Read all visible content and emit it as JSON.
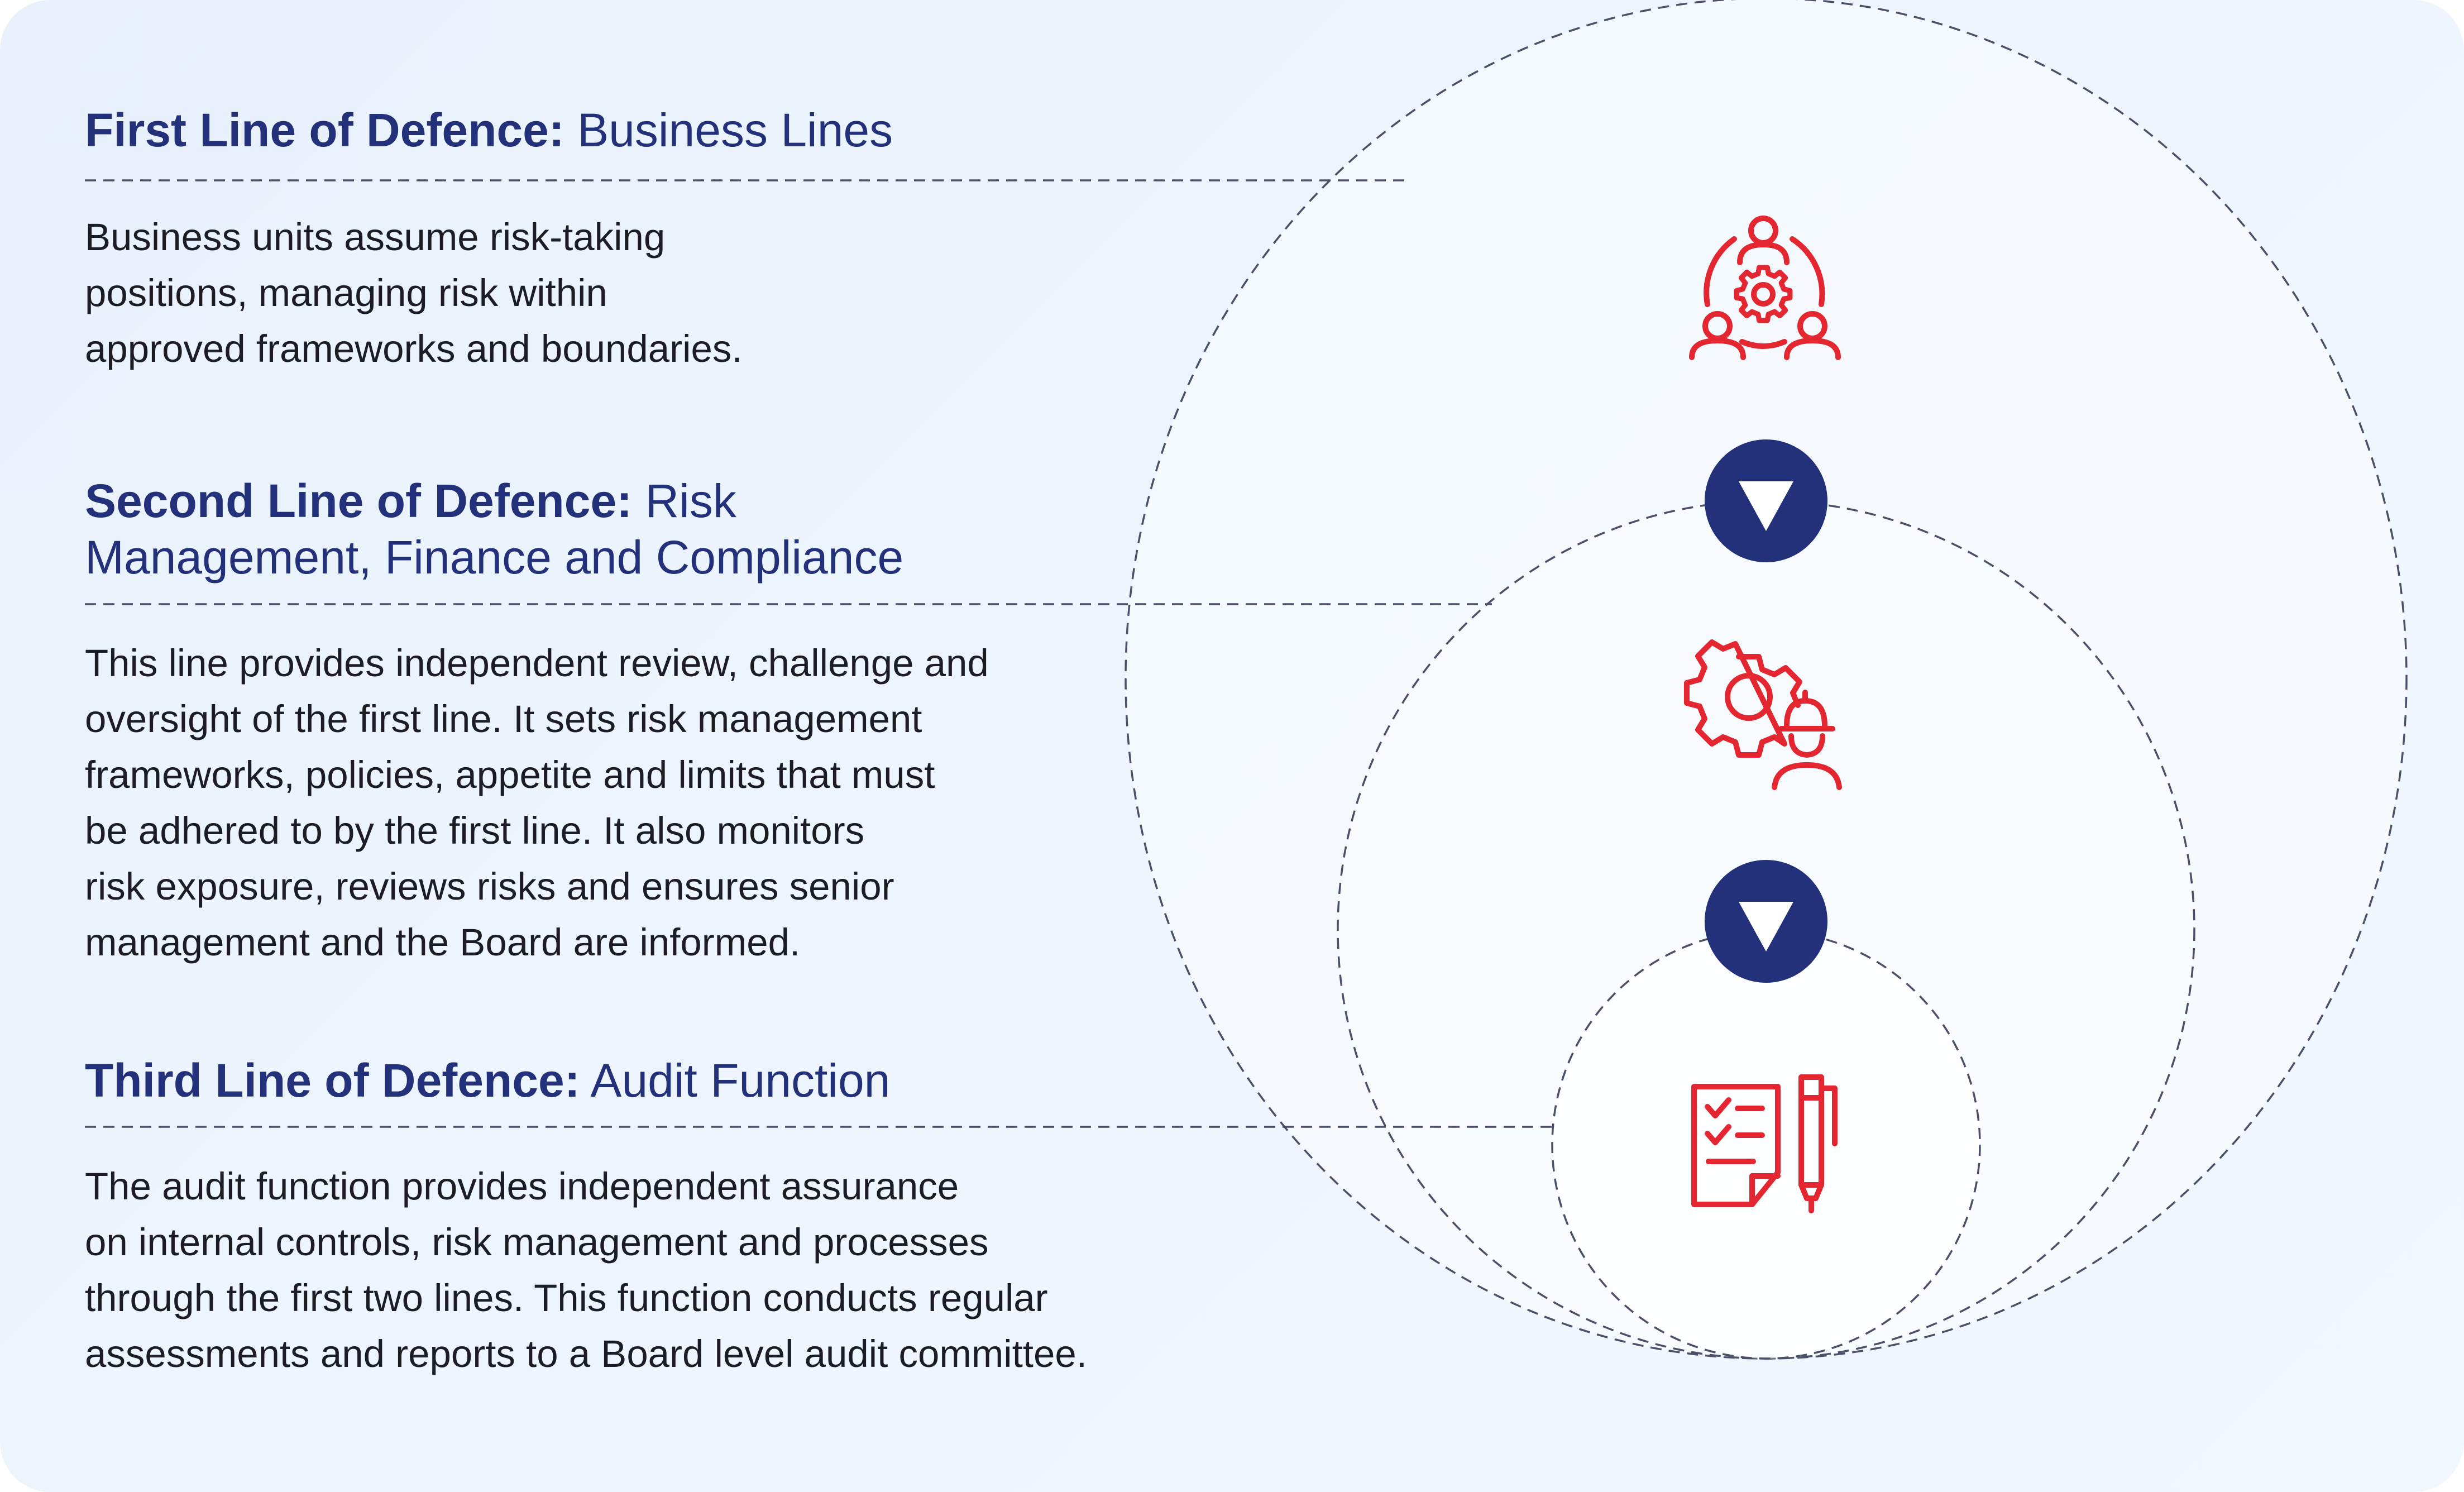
{
  "colors": {
    "heading": "#23307a",
    "body_text": "#1c1c24",
    "icon_red": "#e3262f",
    "arrow_badge": "#23307a",
    "dashed_line": "#4a5068"
  },
  "lines": [
    {
      "title_bold": "First Line of Defence:",
      "title_rest": "Business Lines",
      "description": [
        "Business units assume risk-taking",
        "positions, managing risk within",
        "approved frameworks and boundaries."
      ],
      "icon": "team-gear-icon"
    },
    {
      "title_bold": "Second Line of Defence:",
      "title_rest": "Risk Management, Finance and Compliance",
      "description": [
        "This line provides independent review, challenge and",
        "oversight of the first line. It sets risk management",
        "frameworks, policies, appetite and limits that must",
        "be adhered to by the first line. It also monitors",
        "risk exposure, reviews risks and ensures senior",
        "management and the Board are informed."
      ],
      "icon": "gear-engineer-icon"
    },
    {
      "title_bold": "Third Line of Defence:",
      "title_rest": "Audit Function",
      "description": [
        "The audit function provides independent assurance",
        "on internal controls, risk management and processes",
        "through the first two lines. This function conducts regular",
        "assessments and reports to a Board level audit committee."
      ],
      "icon": "checklist-pen-icon"
    }
  ],
  "arrows": [
    "down-triangle-icon",
    "down-triangle-icon"
  ]
}
